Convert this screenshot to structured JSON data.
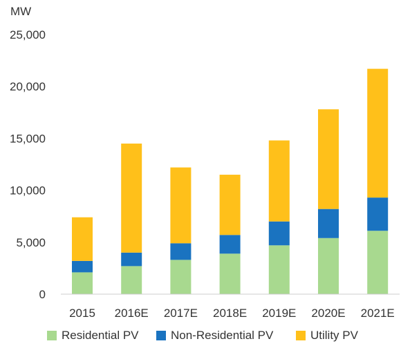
{
  "chart_data": {
    "type": "bar",
    "stacked": true,
    "unit_label": "MW",
    "categories": [
      "2015",
      "2016E",
      "2017E",
      "2018E",
      "2019E",
      "2020E",
      "2021E"
    ],
    "series": [
      {
        "name": "Residential PV",
        "color": "#a8d98f",
        "values": [
          2100,
          2700,
          3300,
          3900,
          4700,
          5400,
          6100
        ]
      },
      {
        "name": "Non-Residential PV",
        "color": "#1a73c0",
        "values": [
          1100,
          1300,
          1600,
          1800,
          2300,
          2800,
          3200
        ]
      },
      {
        "name": "Utility PV",
        "color": "#ffc01a",
        "values": [
          4200,
          10500,
          7300,
          5800,
          7800,
          9600,
          12400
        ]
      }
    ],
    "y_ticks": [
      "0",
      "5,000",
      "10,000",
      "15,000",
      "20,000",
      "25,000"
    ],
    "ylim": [
      0,
      25000
    ],
    "grid": false,
    "legend_position": "bottom"
  }
}
